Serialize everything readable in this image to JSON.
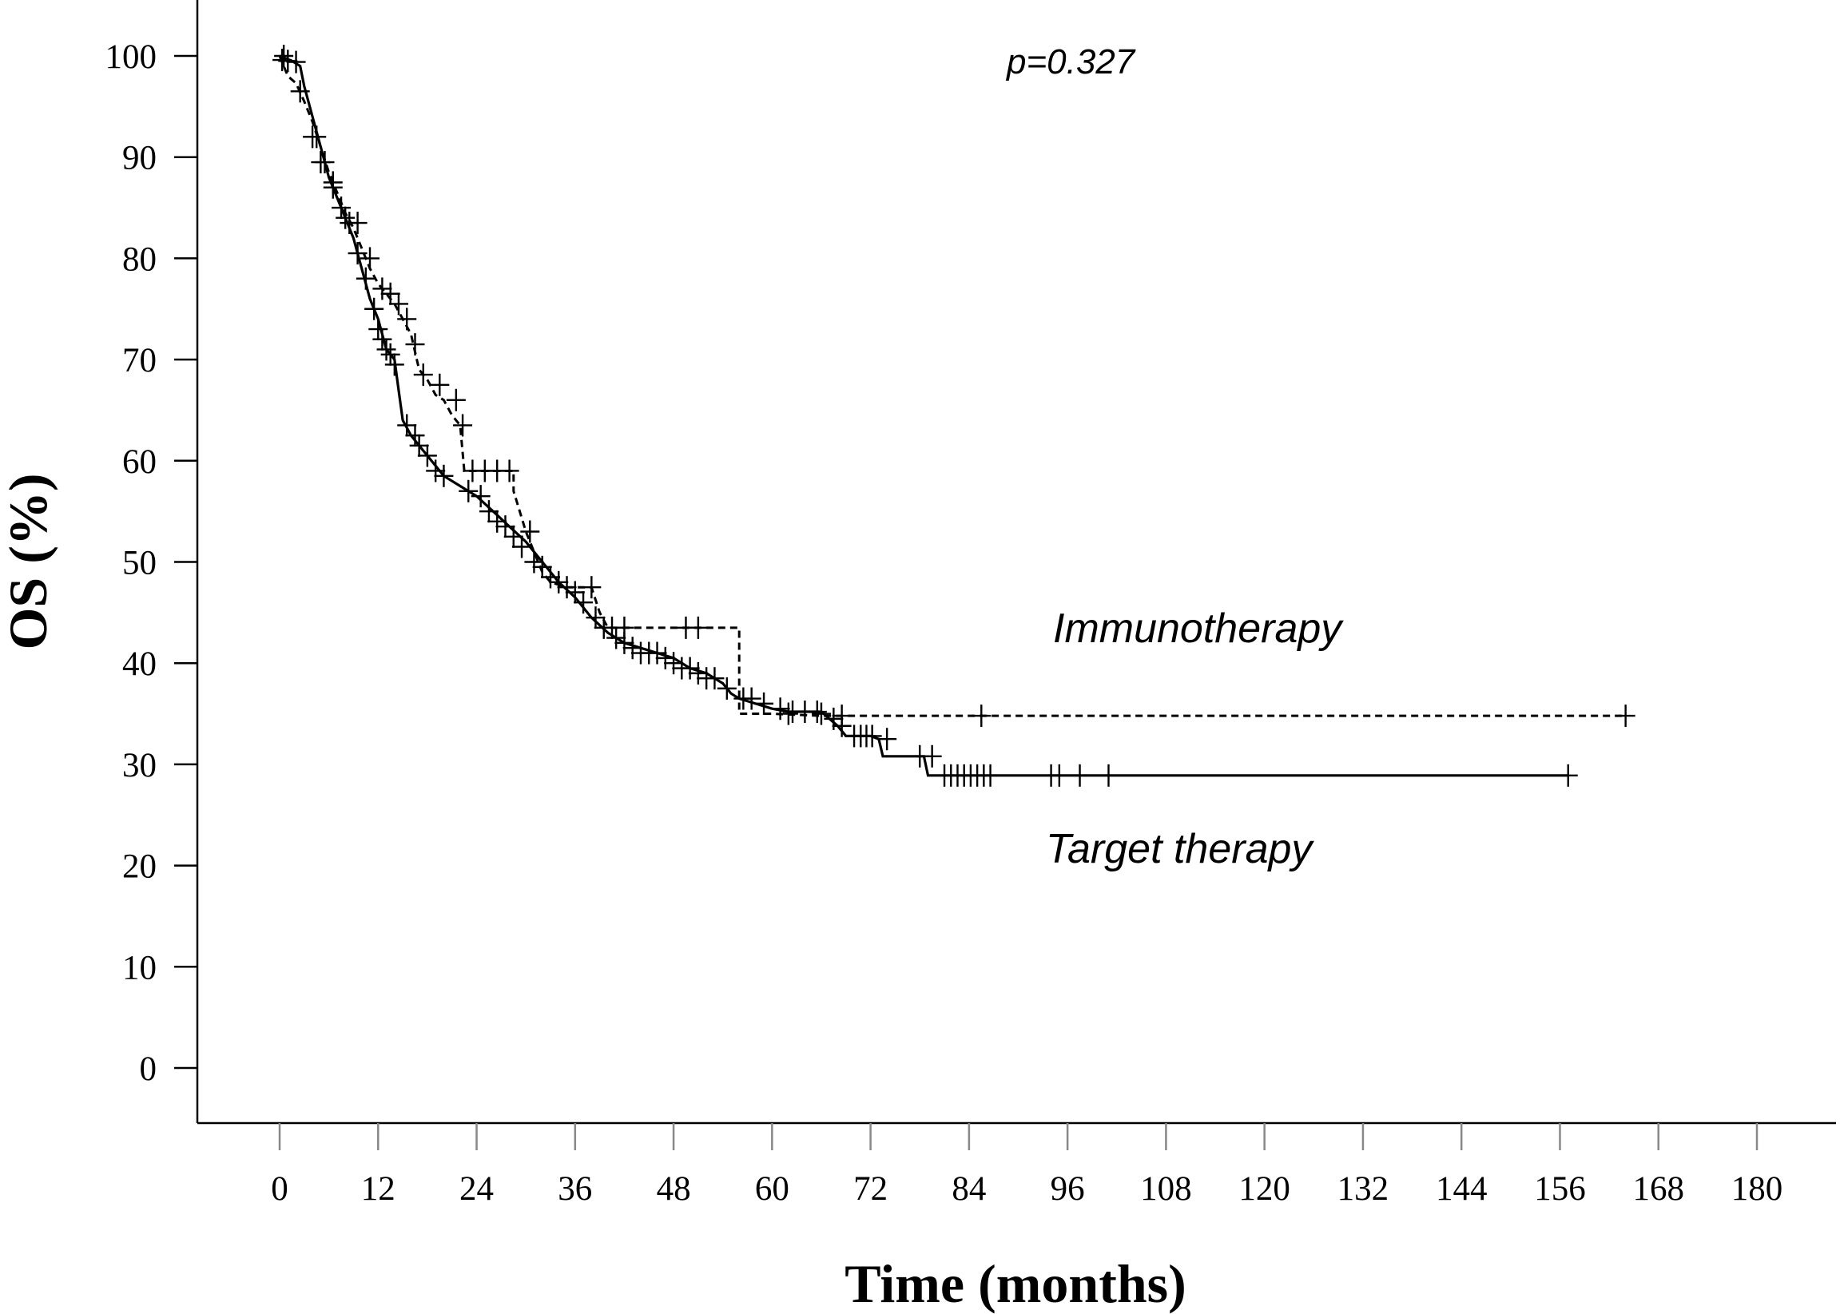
{
  "chart_data": {
    "type": "line",
    "subtype": "kaplan-meier",
    "xlabel": "Time (months)",
    "ylabel": "OS (%)",
    "xlim": [
      0,
      180
    ],
    "ylim": [
      0,
      100
    ],
    "x_ticks": [
      0,
      12,
      24,
      36,
      48,
      60,
      72,
      84,
      96,
      108,
      120,
      132,
      144,
      156,
      168,
      180
    ],
    "y_ticks": [
      0,
      10,
      20,
      30,
      40,
      50,
      60,
      70,
      80,
      90,
      100
    ],
    "grid": false,
    "annotations": {
      "p_value": "p=0.327"
    },
    "series": [
      {
        "name": "Immunotherapy",
        "line_style": "dashed",
        "points": [
          [
            0,
            100
          ],
          [
            0.5,
            99
          ],
          [
            1,
            98
          ],
          [
            2,
            97.3
          ],
          [
            3,
            95.5
          ],
          [
            4,
            93.5
          ],
          [
            5,
            91
          ],
          [
            6,
            88.5
          ],
          [
            7,
            86.5
          ],
          [
            8,
            84.5
          ],
          [
            9,
            83
          ],
          [
            10,
            81
          ],
          [
            11,
            79
          ],
          [
            12,
            77.5
          ],
          [
            13,
            76.5
          ],
          [
            14,
            75.5
          ],
          [
            15,
            74
          ],
          [
            16,
            72.5
          ],
          [
            17,
            69
          ],
          [
            18,
            68
          ],
          [
            19,
            66.5
          ],
          [
            20,
            66
          ],
          [
            21,
            64.5
          ],
          [
            22,
            63.5
          ],
          [
            22.5,
            59
          ],
          [
            28.5,
            59
          ],
          [
            28.5,
            57
          ],
          [
            30,
            53
          ],
          [
            32,
            49
          ],
          [
            33,
            48
          ],
          [
            35,
            47.5
          ],
          [
            38,
            47.5
          ],
          [
            39,
            45
          ],
          [
            40,
            43.5
          ],
          [
            56,
            43.5
          ],
          [
            56,
            35
          ],
          [
            60,
            35
          ],
          [
            66,
            34.8
          ],
          [
            164,
            34.8
          ]
        ],
        "censor_marks": [
          [
            0.3,
            99.6
          ],
          [
            2.5,
            96.5
          ],
          [
            4,
            92
          ],
          [
            5,
            89.5
          ],
          [
            6.5,
            87
          ],
          [
            8,
            84
          ],
          [
            9.5,
            83.5
          ],
          [
            11,
            80
          ],
          [
            12.5,
            77
          ],
          [
            13.5,
            76.5
          ],
          [
            14.5,
            75.5
          ],
          [
            15.5,
            74
          ],
          [
            16.5,
            71.5
          ],
          [
            17.5,
            68.5
          ],
          [
            19.5,
            67.5
          ],
          [
            21.5,
            66
          ],
          [
            22.3,
            63.5
          ],
          [
            23.5,
            59
          ],
          [
            25,
            59
          ],
          [
            26.5,
            59
          ],
          [
            28,
            59
          ],
          [
            30.5,
            53
          ],
          [
            38,
            47.5
          ],
          [
            40.5,
            43.5
          ],
          [
            42,
            43.5
          ],
          [
            49.5,
            43.5
          ],
          [
            51,
            43.5
          ],
          [
            62,
            35
          ],
          [
            66,
            35
          ],
          [
            68.5,
            34.8
          ],
          [
            85.5,
            34.8
          ],
          [
            164,
            34.8
          ]
        ]
      },
      {
        "name": "Target therapy",
        "line_style": "solid",
        "points": [
          [
            0,
            100
          ],
          [
            1.5,
            99.5
          ],
          [
            2.5,
            99
          ],
          [
            3,
            97
          ],
          [
            4,
            94
          ],
          [
            5,
            91
          ],
          [
            6,
            88
          ],
          [
            7,
            86
          ],
          [
            8,
            84
          ],
          [
            9,
            82
          ],
          [
            10,
            79
          ],
          [
            11,
            76
          ],
          [
            12,
            74
          ],
          [
            13,
            71
          ],
          [
            14,
            70
          ],
          [
            14.5,
            67
          ],
          [
            15,
            64
          ],
          [
            16,
            62.5
          ],
          [
            17,
            61.5
          ],
          [
            18,
            60.5
          ],
          [
            19,
            59.5
          ],
          [
            20,
            58.5
          ],
          [
            22,
            57.5
          ],
          [
            24,
            56.5
          ],
          [
            26,
            55
          ],
          [
            28,
            53.5
          ],
          [
            30,
            52
          ],
          [
            32,
            50
          ],
          [
            34,
            48
          ],
          [
            36,
            46.5
          ],
          [
            38,
            44.5
          ],
          [
            40,
            43
          ],
          [
            42,
            42
          ],
          [
            44,
            41.5
          ],
          [
            48,
            40.5
          ],
          [
            50,
            39.5
          ],
          [
            52,
            39
          ],
          [
            54,
            38
          ],
          [
            55,
            37
          ],
          [
            56,
            36.5
          ],
          [
            58,
            36
          ],
          [
            60,
            35.5
          ],
          [
            62,
            35.2
          ],
          [
            66,
            35.2
          ],
          [
            67,
            34.5
          ],
          [
            68,
            33.8
          ],
          [
            69,
            32.8
          ],
          [
            72,
            32.8
          ],
          [
            73,
            32.5
          ],
          [
            73.5,
            30.8
          ],
          [
            78.5,
            30.8
          ],
          [
            79,
            28.9
          ],
          [
            157,
            28.9
          ]
        ],
        "censor_marks": [
          [
            0.5,
            100
          ],
          [
            1,
            99.5
          ],
          [
            2,
            99.4
          ],
          [
            4.5,
            92
          ],
          [
            5.5,
            89.5
          ],
          [
            6.5,
            87.5
          ],
          [
            7.5,
            85
          ],
          [
            8.5,
            83.5
          ],
          [
            9.5,
            80.5
          ],
          [
            10.5,
            78
          ],
          [
            11.5,
            75
          ],
          [
            12,
            73
          ],
          [
            12.5,
            72
          ],
          [
            13,
            71
          ],
          [
            13.5,
            70.5
          ],
          [
            14,
            69.5
          ],
          [
            15.5,
            63.5
          ],
          [
            16.5,
            62.5
          ],
          [
            17,
            61.5
          ],
          [
            18,
            60.5
          ],
          [
            19,
            59
          ],
          [
            20,
            58.5
          ],
          [
            23,
            57
          ],
          [
            24.5,
            56.5
          ],
          [
            25.5,
            55
          ],
          [
            26.5,
            54
          ],
          [
            27.5,
            53.5
          ],
          [
            28.5,
            52.5
          ],
          [
            29.5,
            51.5
          ],
          [
            31,
            50
          ],
          [
            32,
            49.5
          ],
          [
            33,
            48.5
          ],
          [
            34,
            48
          ],
          [
            35,
            47.5
          ],
          [
            36,
            47
          ],
          [
            37,
            46
          ],
          [
            38.5,
            44.5
          ],
          [
            39.5,
            43.5
          ],
          [
            41,
            42.5
          ],
          [
            42,
            42
          ],
          [
            43,
            41.5
          ],
          [
            44,
            41
          ],
          [
            45,
            41
          ],
          [
            46,
            41
          ],
          [
            47,
            40.5
          ],
          [
            48,
            40
          ],
          [
            49,
            39.5
          ],
          [
            50,
            39.5
          ],
          [
            51,
            39
          ],
          [
            52,
            38.5
          ],
          [
            53,
            38.5
          ],
          [
            54.5,
            37.5
          ],
          [
            56.5,
            36.5
          ],
          [
            57.5,
            36.5
          ],
          [
            59,
            36
          ],
          [
            61,
            35.5
          ],
          [
            62.5,
            35.2
          ],
          [
            64,
            35.2
          ],
          [
            65.5,
            35.2
          ],
          [
            67.5,
            34.5
          ],
          [
            68.5,
            33.8
          ],
          [
            70,
            32.8
          ],
          [
            70.8,
            32.8
          ],
          [
            71.5,
            32.8
          ],
          [
            72.2,
            32.8
          ],
          [
            74,
            32.5
          ],
          [
            78,
            30.8
          ],
          [
            79.5,
            30.8
          ],
          [
            81,
            28.9
          ],
          [
            81.8,
            28.9
          ],
          [
            82.6,
            28.9
          ],
          [
            83.4,
            28.9
          ],
          [
            84.2,
            28.9
          ],
          [
            85,
            28.9
          ],
          [
            85.8,
            28.9
          ],
          [
            86.6,
            28.9
          ],
          [
            94,
            28.9
          ],
          [
            95,
            28.9
          ],
          [
            97.5,
            28.9
          ],
          [
            101,
            28.9
          ],
          [
            157,
            28.9
          ]
        ]
      }
    ],
    "series_labels": [
      "Immunotherapy",
      "Target therapy"
    ]
  }
}
